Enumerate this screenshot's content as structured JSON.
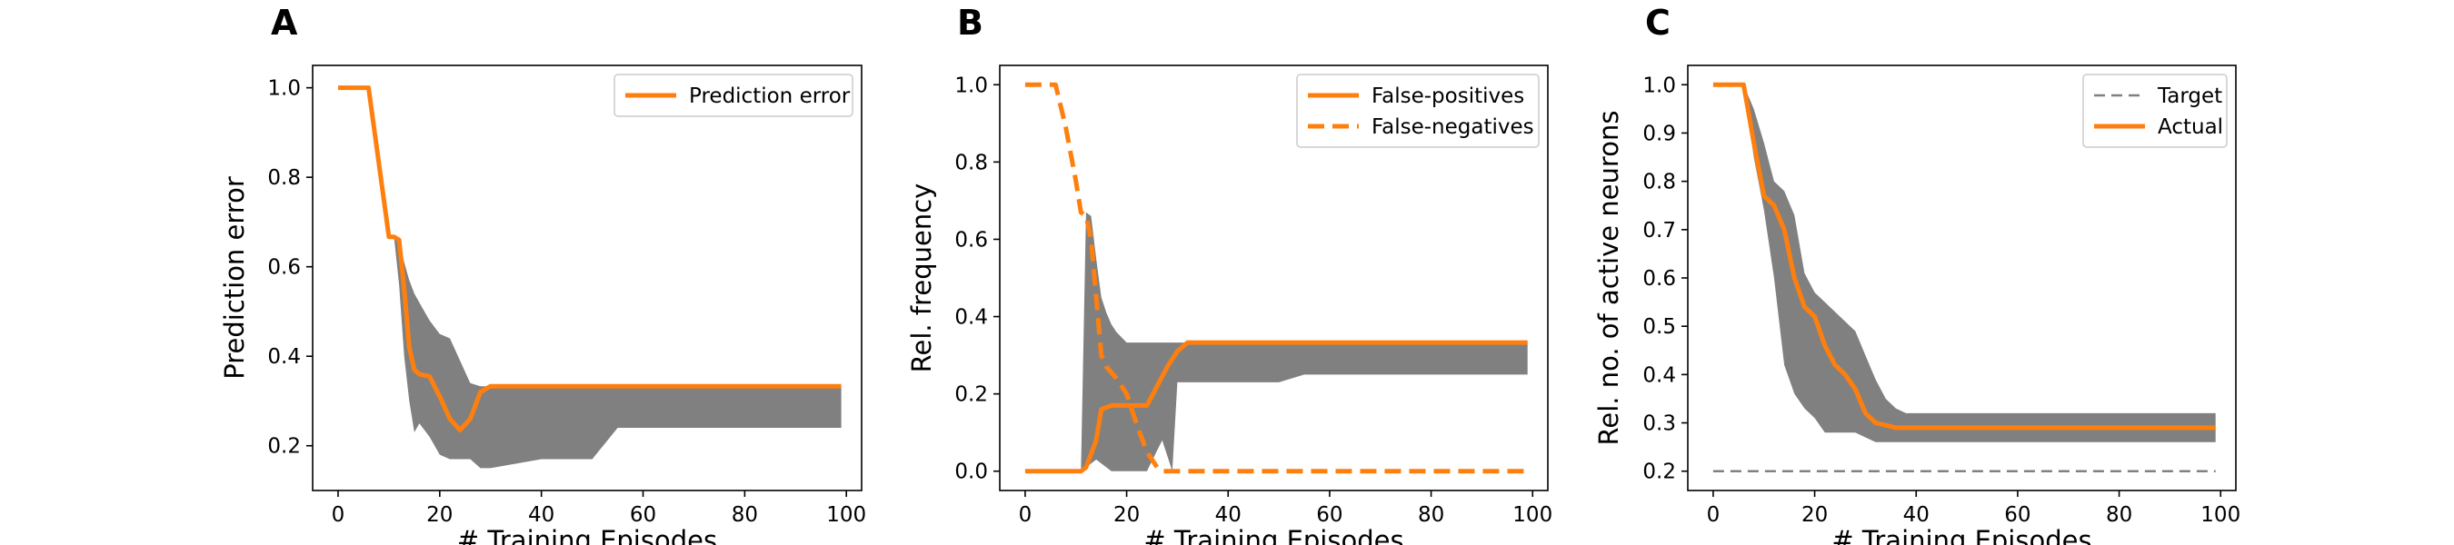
{
  "chart_data": [
    {
      "panel": "A",
      "type": "line",
      "xlabel": "# Training Episodes",
      "ylabel": "Prediction error",
      "xlim": [
        -5,
        103
      ],
      "ylim": [
        0.1,
        1.05
      ],
      "xticks": [
        "0",
        "20",
        "40",
        "60",
        "80",
        "100"
      ],
      "yticks": [
        "0.2",
        "0.4",
        "0.6",
        "0.8",
        "1.0"
      ],
      "legend_position": "top-right",
      "grid": false,
      "series": [
        {
          "name": "Prediction error",
          "style": "solid",
          "color": "#ff7f0e",
          "x": [
            0,
            6,
            10,
            11,
            12,
            13,
            14,
            15,
            16,
            18,
            20,
            22,
            24,
            26,
            28,
            30,
            40,
            60,
            80,
            99
          ],
          "y": [
            1.0,
            1.0,
            0.667,
            0.667,
            0.66,
            0.55,
            0.42,
            0.37,
            0.36,
            0.355,
            0.31,
            0.26,
            0.235,
            0.26,
            0.32,
            0.333,
            0.333,
            0.333,
            0.333,
            0.333
          ]
        }
      ],
      "band": {
        "color": "#808080",
        "x": [
          0,
          6,
          10,
          11,
          12,
          13,
          14,
          15,
          16,
          18,
          20,
          22,
          24,
          26,
          28,
          30,
          40,
          50,
          55,
          60,
          80,
          99
        ],
        "upper": [
          1.0,
          1.0,
          0.667,
          0.667,
          0.66,
          0.61,
          0.57,
          0.54,
          0.52,
          0.48,
          0.45,
          0.44,
          0.39,
          0.34,
          0.333,
          0.333,
          0.333,
          0.333,
          0.333,
          0.333,
          0.333,
          0.333
        ],
        "lower": [
          1.0,
          1.0,
          0.667,
          0.667,
          0.56,
          0.4,
          0.3,
          0.23,
          0.25,
          0.22,
          0.18,
          0.17,
          0.17,
          0.17,
          0.15,
          0.15,
          0.17,
          0.17,
          0.24,
          0.24,
          0.24,
          0.24
        ]
      }
    },
    {
      "panel": "B",
      "type": "line",
      "xlabel": "# Training Episodes",
      "ylabel": "Rel. frequency",
      "xlim": [
        -5,
        103
      ],
      "ylim": [
        -0.05,
        1.05
      ],
      "xticks": [
        "0",
        "20",
        "40",
        "60",
        "80",
        "100"
      ],
      "yticks": [
        "0.0",
        "0.2",
        "0.4",
        "0.6",
        "0.8",
        "1.0"
      ],
      "legend_position": "top-right",
      "grid": false,
      "series": [
        {
          "name": "False-positives",
          "style": "solid",
          "color": "#ff7f0e",
          "x": [
            0,
            11,
            12,
            14,
            15,
            17,
            20,
            24,
            26,
            28,
            30,
            32,
            40,
            60,
            80,
            99
          ],
          "y": [
            0,
            0,
            0.01,
            0.08,
            0.16,
            0.17,
            0.17,
            0.17,
            0.22,
            0.27,
            0.31,
            0.333,
            0.333,
            0.333,
            0.333,
            0.333
          ]
        },
        {
          "name": "False-negatives",
          "style": "dashed",
          "color": "#ff7f0e",
          "x": [
            0,
            6,
            8,
            10,
            11,
            12,
            13,
            14,
            15,
            16,
            18,
            20,
            22,
            24,
            26,
            27,
            28,
            30,
            40,
            60,
            80,
            99
          ],
          "y": [
            1.0,
            1.0,
            0.89,
            0.75,
            0.67,
            0.66,
            0.6,
            0.45,
            0.3,
            0.27,
            0.24,
            0.2,
            0.12,
            0.05,
            0.01,
            0.0,
            0.0,
            0.0,
            0.0,
            0.0,
            0.0,
            0.0
          ]
        }
      ],
      "band": {
        "color": "#808080",
        "x": [
          0,
          11,
          12,
          13,
          14,
          15,
          16,
          17,
          18,
          20,
          24,
          27,
          28,
          29,
          30,
          40,
          50,
          55,
          60,
          80,
          99
        ],
        "upper": [
          0,
          0,
          0.67,
          0.66,
          0.55,
          0.45,
          0.41,
          0.38,
          0.36,
          0.333,
          0.333,
          0.333,
          0.333,
          0.333,
          0.333,
          0.333,
          0.333,
          0.333,
          0.333,
          0.333,
          0.333
        ],
        "lower": [
          0,
          0,
          0.01,
          0.02,
          0.03,
          0.02,
          0.01,
          0.0,
          0.0,
          0.0,
          0.0,
          0.08,
          0.04,
          0.0,
          0.23,
          0.23,
          0.23,
          0.25,
          0.25,
          0.25,
          0.25
        ]
      }
    },
    {
      "panel": "C",
      "type": "line",
      "xlabel": "# Training Episodes",
      "ylabel": "Rel. no. of active neurons",
      "xlim": [
        -5,
        103
      ],
      "ylim": [
        0.16,
        1.04
      ],
      "xticks": [
        "0",
        "20",
        "40",
        "60",
        "80",
        "100"
      ],
      "yticks": [
        "0.2",
        "0.3",
        "0.4",
        "0.5",
        "0.6",
        "0.7",
        "0.8",
        "0.9",
        "1.0"
      ],
      "legend_position": "top-right",
      "grid": false,
      "series": [
        {
          "name": "Target",
          "style": "dashed",
          "color": "#808080",
          "x": [
            0,
            99
          ],
          "y": [
            0.2,
            0.2
          ]
        },
        {
          "name": "Actual",
          "style": "solid",
          "color": "#ff7f0e",
          "x": [
            0,
            6,
            8,
            10,
            12,
            14,
            16,
            18,
            20,
            22,
            24,
            26,
            28,
            30,
            32,
            34,
            36,
            40,
            60,
            80,
            99
          ],
          "y": [
            1.0,
            1.0,
            0.88,
            0.77,
            0.75,
            0.7,
            0.6,
            0.54,
            0.52,
            0.46,
            0.42,
            0.4,
            0.37,
            0.32,
            0.3,
            0.295,
            0.29,
            0.29,
            0.29,
            0.29,
            0.29
          ]
        }
      ],
      "band": {
        "color": "#808080",
        "x": [
          0,
          6,
          8,
          10,
          12,
          14,
          16,
          18,
          20,
          22,
          24,
          26,
          28,
          30,
          32,
          34,
          36,
          38,
          40,
          60,
          80,
          99
        ],
        "upper": [
          1.0,
          1.0,
          0.95,
          0.88,
          0.8,
          0.78,
          0.73,
          0.61,
          0.57,
          0.55,
          0.53,
          0.51,
          0.49,
          0.44,
          0.39,
          0.35,
          0.33,
          0.32,
          0.32,
          0.32,
          0.32,
          0.32
        ],
        "lower": [
          1.0,
          1.0,
          0.85,
          0.74,
          0.6,
          0.42,
          0.36,
          0.33,
          0.31,
          0.28,
          0.28,
          0.28,
          0.28,
          0.27,
          0.26,
          0.26,
          0.26,
          0.26,
          0.26,
          0.26,
          0.26,
          0.26
        ]
      }
    }
  ]
}
